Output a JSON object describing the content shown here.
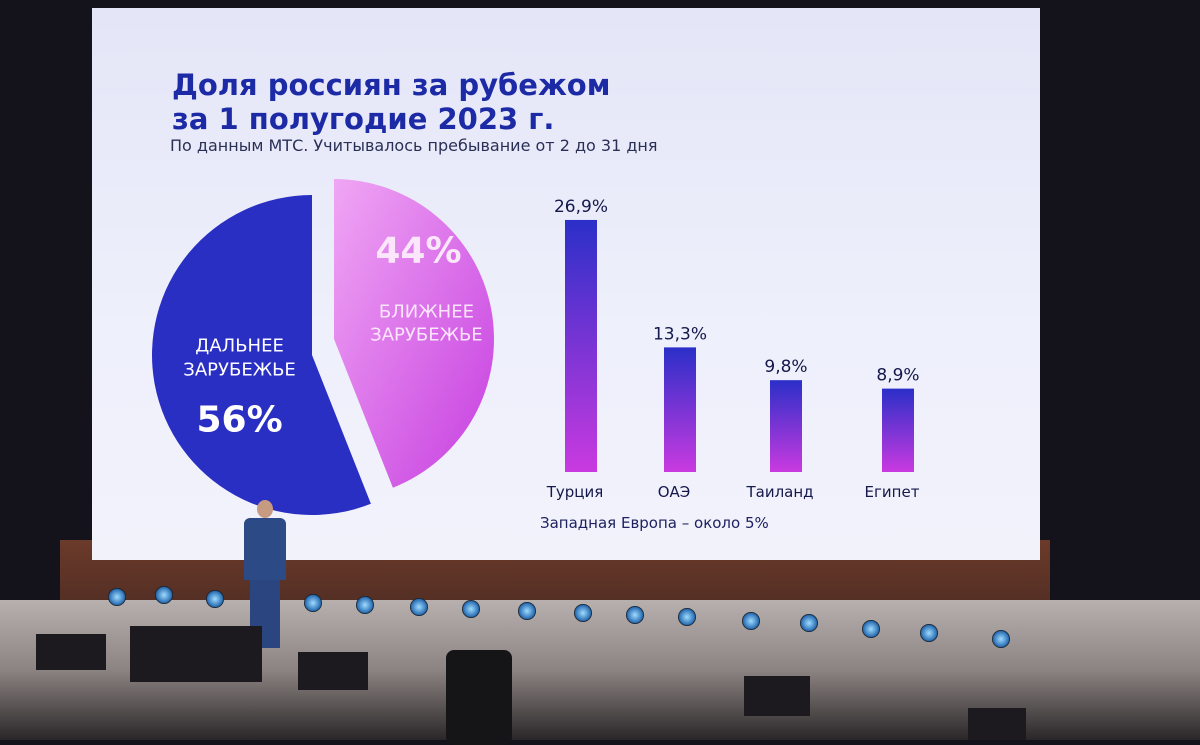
{
  "slide": {
    "title_line1": "Доля россиян за рубежом",
    "title_line2": "за 1 полугодие 2023 г.",
    "subtitle": "По данным МТС. Учитывалось пребывание от 2 до 31 дня",
    "footnote": "Западная Европа – около 5%"
  },
  "chart_data": [
    {
      "type": "pie",
      "slices": [
        {
          "label_line1": "ДАЛЬНЕЕ",
          "label_line2": "ЗАРУБЕЖЬЕ",
          "value": 56,
          "value_label": "56%",
          "color": "#2a2fc4"
        },
        {
          "label_line1": "БЛИЖНЕЕ",
          "label_line2": "ЗАРУБЕЖЬЕ",
          "value": 44,
          "value_label": "44%",
          "color": "#d85ce8"
        }
      ]
    },
    {
      "type": "bar",
      "categories": [
        "Турция",
        "ОАЭ",
        "Таиланд",
        "Египет"
      ],
      "values": [
        26.9,
        13.3,
        9.8,
        8.9
      ],
      "value_labels": [
        "26,9%",
        "13,3%",
        "9,8%",
        "8,9%"
      ],
      "colors": {
        "top": "#2b2fc8",
        "bottom": "#c93ae0"
      }
    }
  ]
}
